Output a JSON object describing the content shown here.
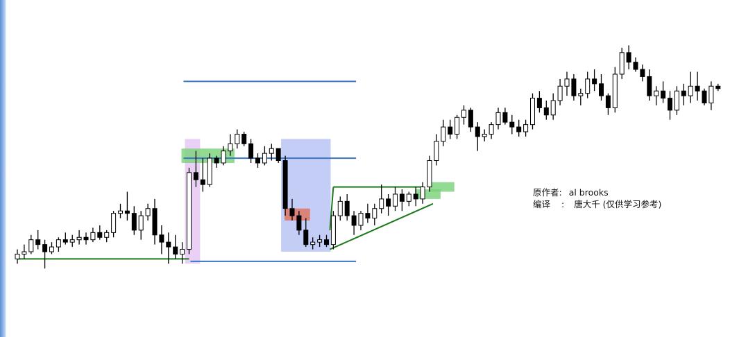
{
  "chart_data": {
    "type": "candlestick",
    "title": "",
    "xlabel": "",
    "ylabel": "",
    "ylim": [
      0,
      100
    ],
    "grid": false,
    "candles": [
      [
        10,
        14,
        8,
        12
      ],
      [
        12,
        16,
        10,
        13
      ],
      [
        13,
        20,
        12,
        18
      ],
      [
        18,
        22,
        14,
        16
      ],
      [
        16,
        18,
        6,
        13
      ],
      [
        13,
        17,
        12,
        15
      ],
      [
        15,
        19,
        13,
        18
      ],
      [
        18,
        21,
        16,
        17
      ],
      [
        17,
        20,
        15,
        18
      ],
      [
        18,
        22,
        16,
        19
      ],
      [
        19,
        21,
        16,
        18
      ],
      [
        18,
        23,
        17,
        21
      ],
      [
        21,
        24,
        18,
        19
      ],
      [
        19,
        22,
        17,
        21
      ],
      [
        21,
        30,
        19,
        29
      ],
      [
        29,
        33,
        27,
        30
      ],
      [
        30,
        38,
        26,
        29
      ],
      [
        29,
        32,
        20,
        22
      ],
      [
        22,
        30,
        18,
        28
      ],
      [
        28,
        33,
        26,
        31
      ],
      [
        31,
        35,
        16,
        20
      ],
      [
        20,
        24,
        12,
        17
      ],
      [
        17,
        21,
        8,
        15
      ],
      [
        15,
        20,
        10,
        12
      ],
      [
        12,
        17,
        8,
        14
      ],
      [
        14,
        48,
        12,
        46
      ],
      [
        46,
        55,
        40,
        43
      ],
      [
        43,
        52,
        38,
        41
      ],
      [
        41,
        54,
        40,
        52
      ],
      [
        52,
        53,
        48,
        50
      ],
      [
        50,
        57,
        49,
        55
      ],
      [
        55,
        62,
        53,
        58
      ],
      [
        58,
        64,
        56,
        62
      ],
      [
        62,
        63,
        57,
        58
      ],
      [
        58,
        60,
        50,
        52
      ],
      [
        52,
        54,
        48,
        50
      ],
      [
        50,
        57,
        49,
        54
      ],
      [
        54,
        58,
        51,
        56
      ],
      [
        56,
        56,
        50,
        51
      ],
      [
        51,
        53,
        28,
        31
      ],
      [
        31,
        35,
        26,
        28
      ],
      [
        28,
        30,
        20,
        22
      ],
      [
        22,
        27,
        15,
        16
      ],
      [
        16,
        19,
        14,
        17
      ],
      [
        17,
        20,
        15,
        18
      ],
      [
        18,
        20,
        15,
        16
      ],
      [
        16,
        30,
        14,
        28
      ],
      [
        28,
        36,
        26,
        34
      ],
      [
        34,
        37,
        26,
        28
      ],
      [
        28,
        30,
        20,
        24
      ],
      [
        24,
        30,
        22,
        29
      ],
      [
        29,
        33,
        25,
        27
      ],
      [
        27,
        33,
        24,
        31
      ],
      [
        31,
        41,
        29,
        35
      ],
      [
        35,
        37,
        28,
        32
      ],
      [
        32,
        40,
        30,
        37
      ],
      [
        37,
        39,
        30,
        34
      ],
      [
        34,
        38,
        32,
        37
      ],
      [
        37,
        40,
        32,
        35
      ],
      [
        35,
        42,
        33,
        40
      ],
      [
        40,
        53,
        38,
        51
      ],
      [
        51,
        62,
        49,
        59
      ],
      [
        59,
        68,
        57,
        65
      ],
      [
        65,
        68,
        60,
        62
      ],
      [
        62,
        70,
        60,
        69
      ],
      [
        69,
        74,
        66,
        72
      ],
      [
        72,
        73,
        63,
        65
      ],
      [
        65,
        67,
        55,
        61
      ],
      [
        61,
        64,
        59,
        62
      ],
      [
        62,
        67,
        60,
        66
      ],
      [
        66,
        73,
        64,
        71
      ],
      [
        71,
        73,
        66,
        67
      ],
      [
        67,
        70,
        62,
        65
      ],
      [
        65,
        68,
        61,
        63
      ],
      [
        63,
        68,
        61,
        66
      ],
      [
        66,
        79,
        64,
        77
      ],
      [
        77,
        80,
        71,
        73
      ],
      [
        73,
        76,
        68,
        70
      ],
      [
        70,
        79,
        68,
        76
      ],
      [
        76,
        85,
        74,
        82
      ],
      [
        82,
        88,
        78,
        85
      ],
      [
        85,
        87,
        76,
        78
      ],
      [
        78,
        81,
        74,
        79
      ],
      [
        79,
        88,
        77,
        85
      ],
      [
        85,
        89,
        80,
        83
      ],
      [
        83,
        87,
        76,
        78
      ],
      [
        78,
        79,
        70,
        73
      ],
      [
        73,
        90,
        71,
        87
      ],
      [
        87,
        98,
        85,
        96
      ],
      [
        96,
        99,
        89,
        92
      ],
      [
        92,
        94,
        88,
        89
      ],
      [
        89,
        91,
        84,
        86
      ],
      [
        86,
        89,
        76,
        78
      ],
      [
        78,
        82,
        74,
        80
      ],
      [
        80,
        84,
        75,
        77
      ],
      [
        77,
        80,
        68,
        72
      ],
      [
        72,
        82,
        70,
        80
      ],
      [
        80,
        83,
        74,
        78
      ],
      [
        78,
        88,
        75,
        82
      ],
      [
        82,
        88,
        76,
        80
      ],
      [
        80,
        81,
        74,
        75
      ],
      [
        75,
        84,
        72,
        82
      ],
      [
        82,
        83,
        80,
        81
      ]
    ],
    "annotations": {
      "zones": [
        {
          "kind": "pink-zone",
          "from": 25,
          "to": 26
        },
        {
          "kind": "blue-zone",
          "from": 39,
          "to": 45
        },
        {
          "kind": "green-highlight",
          "from": 24.5,
          "to": 31,
          "price": [
            50,
            56
          ]
        },
        {
          "kind": "red-highlight",
          "from": 39.5,
          "to": 42,
          "price": [
            26,
            31
          ]
        },
        {
          "kind": "green-highlight",
          "from": 58.5,
          "to": 61,
          "price": [
            35,
            39
          ]
        },
        {
          "kind": "green-highlight",
          "from": 60.5,
          "to": 63,
          "price": [
            38,
            42
          ]
        }
      ],
      "levels": [
        {
          "from": 25,
          "to": 49,
          "price": 84
        },
        {
          "from": 25,
          "to": 49,
          "price": 52
        },
        {
          "from": 26,
          "to": 49,
          "price": 9
        }
      ],
      "trendlines": [
        {
          "x1": 0,
          "y1": 10,
          "x2": 25,
          "y2": 10
        },
        {
          "x1": 45.5,
          "y1": 14,
          "x2": 60.5,
          "y2": 33
        },
        {
          "x1": 45.5,
          "y1": 22,
          "x2": 46,
          "y2": 40
        },
        {
          "x1": 46,
          "y1": 40,
          "x2": 59,
          "y2": 40
        }
      ]
    }
  },
  "colors": {
    "candle_up_fill": "#ffffff",
    "candle_down_fill": "#000000",
    "candle_stroke": "#000000",
    "level_line": "#3a75c4",
    "trend_line": "#1b7a1b",
    "pink_zone": "#e7c8f3",
    "blue_zone": "#b9c4f3",
    "green_highlight": "#78d278",
    "red_highlight": "#e0705c"
  },
  "credits": {
    "author_label": "原作者:",
    "author_value": "al brooks",
    "translator_label": "编译",
    "translator_sep": ":",
    "translator_value": "唐大千 (仅供学习参考)"
  }
}
